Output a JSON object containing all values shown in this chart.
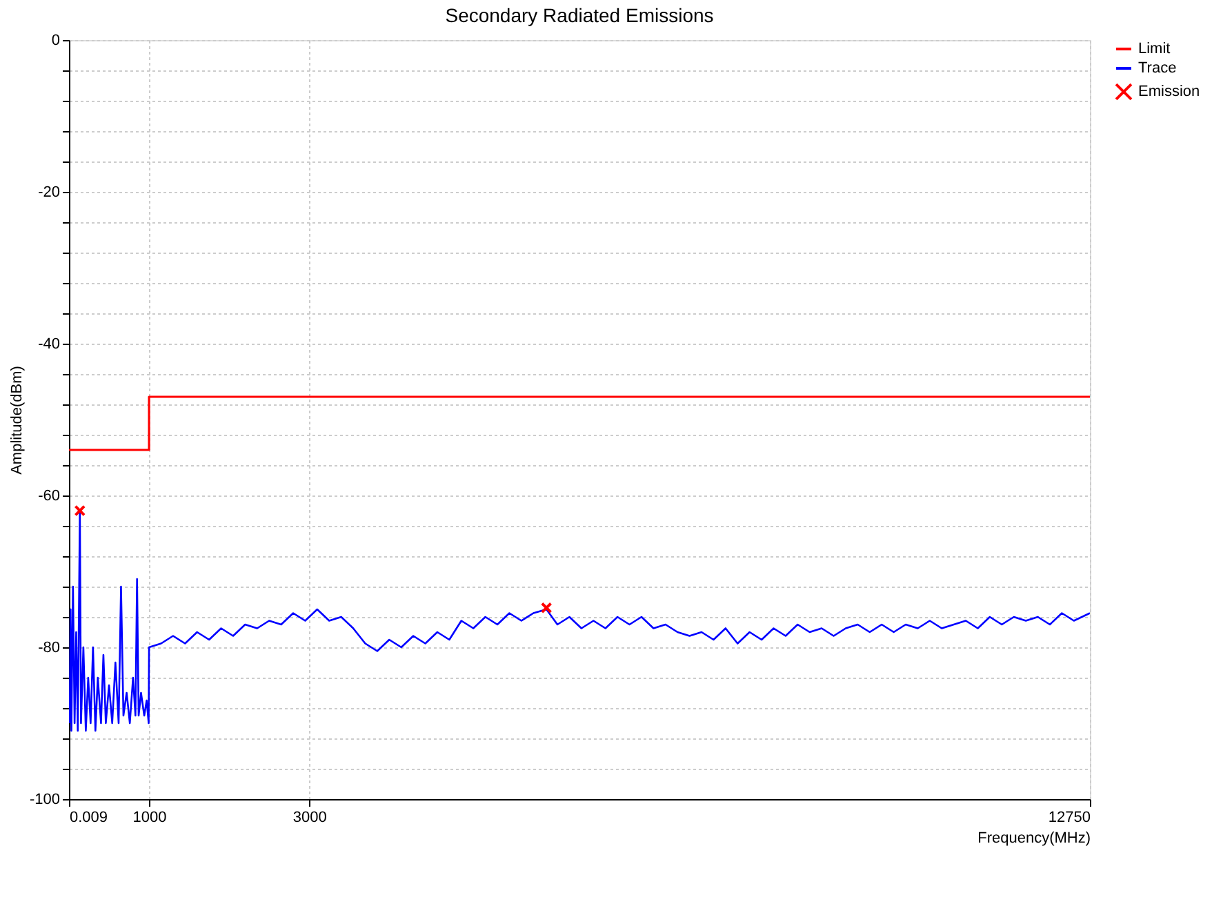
{
  "chart_data": {
    "type": "line",
    "title": "Secondary Radiated Emissions",
    "xlabel": "Frequency(MHz)",
    "ylabel": "Amplitude(dBm)",
    "xlim": [
      0.009,
      12750
    ],
    "xticks": [
      0.009,
      1000,
      3000,
      12750
    ],
    "ylim": [
      -100,
      0
    ],
    "yticks": [
      0,
      {
        "value": -4,
        "label": null
      },
      {
        "value": -8,
        "label": null
      },
      {
        "value": -12,
        "label": null
      },
      {
        "value": -16,
        "label": null
      },
      -20,
      {
        "value": -24,
        "label": null
      },
      {
        "value": -28,
        "label": null
      },
      {
        "value": -32,
        "label": null
      },
      {
        "value": -36,
        "label": null
      },
      -40,
      {
        "value": -44,
        "label": null
      },
      {
        "value": -48,
        "label": null
      },
      {
        "value": -52,
        "label": null
      },
      {
        "value": -56,
        "label": null
      },
      -60,
      {
        "value": -64,
        "label": null
      },
      {
        "value": -68,
        "label": null
      },
      {
        "value": -72,
        "label": null
      },
      {
        "value": -76,
        "label": null
      },
      -80,
      {
        "value": -84,
        "label": null
      },
      {
        "value": -88,
        "label": null
      },
      {
        "value": -92,
        "label": null
      },
      {
        "value": -96,
        "label": null
      },
      -100
    ],
    "grid": true,
    "legend": "top right",
    "line_style": "solid",
    "series": [
      {
        "name": "Limit",
        "color": "#ff0000",
        "type": "step",
        "x": [
          0.009,
          1000,
          1000,
          12750
        ],
        "values": [
          -54,
          -54,
          -47,
          -47
        ]
      },
      {
        "name": "Trace",
        "color": "#0000ff",
        "x": [
          9,
          20,
          30,
          50,
          70,
          90,
          110,
          136,
          150,
          180,
          210,
          240,
          270,
          300,
          330,
          360,
          400,
          430,
          460,
          500,
          540,
          580,
          620,
          650,
          680,
          720,
          760,
          800,
          830,
          850,
          870,
          900,
          940,
          970,
          995,
          1000,
          1150,
          1300,
          1450,
          1600,
          1750,
          1900,
          2050,
          2200,
          2350,
          2500,
          2650,
          2800,
          2950,
          3100,
          3250,
          3400,
          3550,
          3700,
          3850,
          4000,
          4150,
          4300,
          4450,
          4600,
          4750,
          4900,
          5050,
          5200,
          5350,
          5500,
          5650,
          5800,
          5963,
          6100,
          6250,
          6400,
          6550,
          6700,
          6850,
          7000,
          7150,
          7300,
          7450,
          7600,
          7750,
          7900,
          8050,
          8200,
          8350,
          8500,
          8650,
          8800,
          8950,
          9100,
          9250,
          9400,
          9550,
          9700,
          9850,
          10000,
          10150,
          10300,
          10450,
          10600,
          10750,
          10900,
          11050,
          11200,
          11350,
          11500,
          11650,
          11800,
          11950,
          12100,
          12250,
          12400,
          12550,
          12750
        ],
        "values": [
          -90,
          -75,
          -91,
          -72,
          -90,
          -78,
          -91,
          -62,
          -90,
          -80,
          -91,
          -84,
          -90,
          -80,
          -91,
          -84,
          -90,
          -81,
          -90,
          -85,
          -90,
          -82,
          -90,
          -72,
          -89,
          -86,
          -90,
          -84,
          -89,
          -71,
          -89,
          -86,
          -89,
          -87,
          -90,
          -80,
          -79.5,
          -78.5,
          -79.5,
          -78,
          -79,
          -77.5,
          -78.5,
          -77,
          -77.5,
          -76.5,
          -77,
          -75.5,
          -76.5,
          -75,
          -76.5,
          -76,
          -77.5,
          -79.5,
          -80.5,
          -79,
          -80,
          -78.5,
          -79.5,
          -78,
          -79,
          -76.5,
          -77.5,
          -76,
          -77,
          -75.5,
          -76.5,
          -75.5,
          -75,
          -77,
          -76,
          -77.5,
          -76.5,
          -77.5,
          -76,
          -77,
          -76,
          -77.5,
          -77,
          -78,
          -78.5,
          -78,
          -79,
          -77.5,
          -79.5,
          -78,
          -79,
          -77.5,
          -78.5,
          -77,
          -78,
          -77.5,
          -78.5,
          -77.5,
          -77,
          -78,
          -77,
          -78,
          -77,
          -77.5,
          -76.5,
          -77.5,
          -77,
          -76.5,
          -77.5,
          -76,
          -77,
          -76,
          -76.5,
          -76,
          -77,
          -75.5,
          -76.5,
          -75.5
        ]
      },
      {
        "name": "Emission",
        "color": "#ff0000",
        "type": "scatter",
        "marker": "cross",
        "x": [
          136,
          5963
        ],
        "values": [
          -62,
          -74.8
        ]
      }
    ]
  }
}
